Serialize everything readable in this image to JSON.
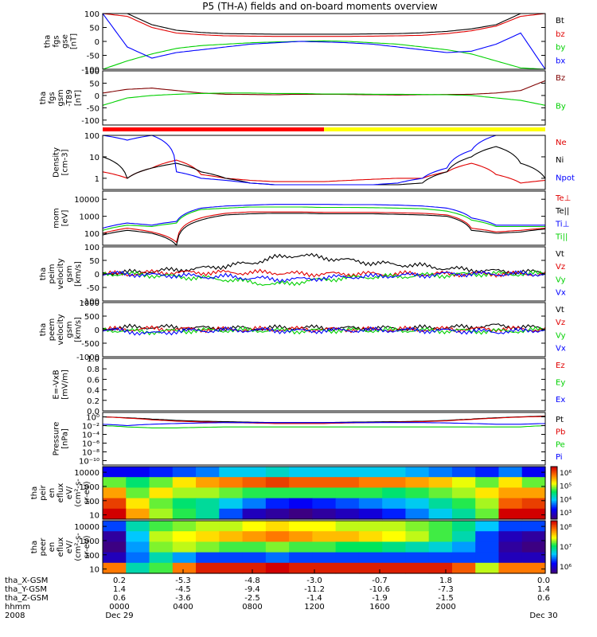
{
  "title": "P5 (TH-A) fields and on-board moments overview",
  "chart_data": [
    {
      "type": "line",
      "panel": "fgs_gse",
      "ylabel": [
        "tha",
        "fgs",
        "gse",
        "[nT]"
      ],
      "yticks": [
        "100",
        "50",
        "0",
        "-50",
        "-100"
      ],
      "ylim": [
        -100,
        100
      ],
      "scale": "linear",
      "series": [
        {
          "name": "Bt",
          "color": "#000000",
          "values": [
            100,
            100,
            60,
            40,
            32,
            28,
            27,
            26,
            26,
            26,
            26,
            27,
            28,
            31,
            36,
            45,
            60,
            100,
            100
          ]
        },
        {
          "name": "bz",
          "color": "#e00000",
          "values": [
            100,
            90,
            50,
            30,
            24,
            20,
            19,
            18,
            18,
            18,
            18,
            19,
            20,
            22,
            28,
            38,
            55,
            90,
            100
          ]
        },
        {
          "name": "by",
          "color": "#00d000",
          "values": [
            -100,
            -70,
            -45,
            -25,
            -15,
            -10,
            -5,
            -2,
            0,
            2,
            0,
            -5,
            -10,
            -20,
            -30,
            -45,
            -70,
            -95,
            -100
          ]
        },
        {
          "name": "bx",
          "color": "#0000ff",
          "values": [
            100,
            -20,
            -60,
            -40,
            -30,
            -20,
            -10,
            -5,
            0,
            -2,
            -5,
            -10,
            -20,
            -30,
            -40,
            -35,
            -10,
            30,
            -100
          ]
        }
      ]
    },
    {
      "type": "line",
      "panel": "fgs_gsm_t89",
      "ylabel": [
        "tha",
        "fgs",
        "gsm",
        "-T89",
        "[nT]"
      ],
      "yticks": [
        "100",
        "50",
        "0",
        "-50",
        "-100"
      ],
      "ylim": [
        -120,
        100
      ],
      "scale": "linear",
      "series": [
        {
          "name": "Bz",
          "color": "#800000",
          "values": [
            10,
            25,
            30,
            20,
            10,
            5,
            4,
            3,
            5,
            5,
            4,
            3,
            2,
            3,
            4,
            5,
            10,
            20,
            60
          ]
        },
        {
          "name": "By",
          "color": "#00d000",
          "values": [
            -40,
            -10,
            0,
            5,
            8,
            10,
            10,
            8,
            8,
            6,
            6,
            5,
            5,
            4,
            3,
            0,
            -10,
            -20,
            -40
          ]
        }
      ]
    },
    {
      "type": "line",
      "panel": "density",
      "ylabel": [
        "Density",
        "[cm-3]"
      ],
      "yticks": [
        "100",
        "10",
        "1"
      ],
      "ylim": [
        0.3,
        100
      ],
      "scale": "log",
      "series": [
        {
          "name": "Ne",
          "color": "#e00000",
          "values": [
            2,
            1,
            3,
            7,
            1.5,
            1,
            0.8,
            0.7,
            0.7,
            0.7,
            0.8,
            0.9,
            1,
            1,
            2,
            5,
            1.5,
            0.6,
            0.8
          ]
        },
        {
          "name": "Ni",
          "color": "#000000",
          "values": [
            10,
            1,
            3,
            5,
            2,
            1,
            0.6,
            0.5,
            0.5,
            0.5,
            0.5,
            0.5,
            0.5,
            0.6,
            2,
            10,
            30,
            5,
            1
          ]
        },
        {
          "name": "Npot",
          "color": "#0000ff",
          "values": [
            100,
            60,
            100,
            2,
            1,
            0.8,
            0.6,
            0.5,
            0.5,
            0.5,
            0.5,
            0.5,
            0.6,
            1,
            3,
            20,
            100,
            100,
            100
          ]
        }
      ]
    },
    {
      "type": "line",
      "panel": "mom",
      "ylabel": [
        "mom",
        "[eV]"
      ],
      "yticks": [
        "10000",
        "1000",
        "100"
      ],
      "ylim": [
        20,
        30000
      ],
      "scale": "log",
      "series": [
        {
          "name": "Te⊥",
          "color": "#e00000",
          "values": [
            100,
            200,
            120,
            30,
            800,
            1500,
            1800,
            1800,
            1800,
            1700,
            1700,
            1700,
            1600,
            1500,
            1200,
            200,
            120,
            150,
            200
          ]
        },
        {
          "name": "Te||",
          "color": "#000000",
          "values": [
            80,
            150,
            100,
            20,
            600,
            1200,
            1400,
            1500,
            1500,
            1400,
            1400,
            1400,
            1300,
            1200,
            1000,
            150,
            100,
            120,
            180
          ]
        },
        {
          "name": "Ti⊥",
          "color": "#0000ff",
          "values": [
            200,
            400,
            300,
            500,
            3000,
            4000,
            4500,
            5000,
            5000,
            5000,
            4800,
            4800,
            4500,
            4000,
            3000,
            800,
            300,
            300,
            300
          ]
        },
        {
          "name": "Ti||",
          "color": "#00d000",
          "values": [
            150,
            300,
            250,
            400,
            2500,
            3000,
            3500,
            3500,
            3500,
            3300,
            3300,
            3200,
            3000,
            2800,
            2000,
            600,
            250,
            250,
            250
          ]
        }
      ]
    },
    {
      "type": "line",
      "panel": "peim_velocity",
      "ylabel": [
        "tha",
        "peim",
        "velocity",
        "gsm",
        "[km/s]"
      ],
      "yticks": [
        "100",
        "50",
        "0",
        "-50",
        "-100"
      ],
      "ylim": [
        -100,
        100
      ],
      "scale": "linear",
      "series": [
        {
          "name": "Vt",
          "color": "#000000",
          "values": [
            5,
            5,
            10,
            15,
            20,
            30,
            40,
            60,
            70,
            60,
            50,
            40,
            35,
            30,
            20,
            15,
            10,
            8,
            5
          ]
        },
        {
          "name": "Vz",
          "color": "#e00000",
          "values": [
            0,
            0,
            5,
            5,
            5,
            5,
            5,
            5,
            0,
            0,
            0,
            0,
            0,
            0,
            0,
            0,
            0,
            0,
            0
          ]
        },
        {
          "name": "Vy",
          "color": "#00d000",
          "values": [
            0,
            0,
            -5,
            -10,
            -15,
            -20,
            -30,
            -40,
            -30,
            -20,
            -15,
            -10,
            -10,
            -5,
            -5,
            0,
            0,
            0,
            0
          ]
        },
        {
          "name": "Vx",
          "color": "#0000ff",
          "values": [
            0,
            0,
            -5,
            -5,
            -10,
            -10,
            -15,
            -20,
            -20,
            -15,
            -10,
            -10,
            -5,
            -5,
            0,
            0,
            0,
            0,
            0
          ]
        }
      ]
    },
    {
      "type": "line",
      "panel": "peem_velocity",
      "ylabel": [
        "tha",
        "peem",
        "velocity",
        "gsm",
        "[km/s]"
      ],
      "yticks": [
        "1000",
        "500",
        "0",
        "-500",
        "-1000"
      ],
      "ylim": [
        -1000,
        1000
      ],
      "scale": "linear",
      "series": [
        {
          "name": "Vt",
          "color": "#000000",
          "values": [
            50,
            80,
            100,
            80,
            60,
            50,
            50,
            60,
            80,
            60,
            50,
            50,
            50,
            60,
            80,
            100,
            150,
            100,
            50
          ]
        },
        {
          "name": "Vz",
          "color": "#e00000",
          "values": [
            0,
            20,
            30,
            20,
            10,
            10,
            10,
            10,
            20,
            10,
            10,
            10,
            10,
            10,
            20,
            20,
            30,
            20,
            0
          ]
        },
        {
          "name": "Vy",
          "color": "#00d000",
          "values": [
            0,
            -50,
            -80,
            -50,
            -30,
            -20,
            -20,
            -30,
            -50,
            -30,
            -20,
            -20,
            -20,
            -30,
            -40,
            -50,
            -60,
            -40,
            0
          ]
        },
        {
          "name": "Vx",
          "color": "#0000ff",
          "values": [
            0,
            -60,
            -150,
            -60,
            -30,
            -20,
            -20,
            -30,
            -50,
            -30,
            -20,
            -20,
            -20,
            -30,
            -40,
            -60,
            -80,
            -50,
            0
          ]
        }
      ]
    },
    {
      "type": "line",
      "panel": "e_field",
      "ylabel": [
        "E=-VxB",
        "[mV/m]"
      ],
      "yticks": [
        "1.0",
        "0.8",
        "0.6",
        "0.4",
        "0.2",
        "0.0"
      ],
      "ylim": [
        0,
        1
      ],
      "scale": "linear",
      "series": [
        {
          "name": "Ez",
          "color": "#e00000",
          "values": []
        },
        {
          "name": "Ey",
          "color": "#00d000",
          "values": []
        },
        {
          "name": "Ex",
          "color": "#0000ff",
          "values": []
        }
      ]
    },
    {
      "type": "line",
      "panel": "pressure",
      "ylabel": [
        "Pressure",
        "[nPa]"
      ],
      "yticks": [
        "10⁰",
        "10⁻²",
        "10⁻⁴",
        "10⁻⁶",
        "10⁻⁸",
        "10⁻¹⁰"
      ],
      "ylim": [
        1e-11,
        10
      ],
      "scale": "log",
      "series": [
        {
          "name": "Pt",
          "color": "#000000",
          "values": [
            1,
            0.6,
            0.3,
            0.15,
            0.1,
            0.08,
            0.06,
            0.05,
            0.05,
            0.05,
            0.06,
            0.07,
            0.08,
            0.1,
            0.15,
            0.3,
            0.6,
            1,
            1.5
          ]
        },
        {
          "name": "Pb",
          "color": "#e00000",
          "values": [
            1,
            0.5,
            0.2,
            0.1,
            0.07,
            0.05,
            0.04,
            0.03,
            0.03,
            0.03,
            0.04,
            0.05,
            0.06,
            0.08,
            0.12,
            0.25,
            0.5,
            0.9,
            1.2
          ]
        },
        {
          "name": "Pe",
          "color": "#00d000",
          "values": [
            0.01,
            0.005,
            0.003,
            0.003,
            0.004,
            0.005,
            0.005,
            0.005,
            0.005,
            0.005,
            0.005,
            0.005,
            0.005,
            0.005,
            0.005,
            0.005,
            0.005,
            0.005,
            0.01
          ]
        },
        {
          "name": "Pi",
          "color": "#0000ff",
          "values": [
            0.02,
            0.01,
            0.02,
            0.03,
            0.04,
            0.05,
            0.05,
            0.05,
            0.05,
            0.05,
            0.05,
            0.05,
            0.05,
            0.05,
            0.04,
            0.03,
            0.02,
            0.02,
            0.03
          ]
        }
      ]
    },
    {
      "type": "heatmap",
      "panel": "peir_en_eflux",
      "ylabel": [
        "tha",
        "peir",
        "en",
        "eflux",
        "eV/",
        "(cm²-s-",
        "sr-eV)"
      ],
      "yticks": [
        "10000",
        "1000",
        "100",
        "10"
      ],
      "ylim": [
        5,
        25000
      ],
      "scale": "log",
      "colorbar_ticks": [
        "10⁶",
        "10⁵",
        "10⁴",
        "10³"
      ],
      "z_log10": [
        [
          3.5,
          3.5,
          3.6,
          3.7,
          3.8,
          4.0,
          4.0,
          4.1,
          4.0,
          4.0,
          4.0,
          4.0,
          4.0,
          3.9,
          3.8,
          3.7,
          3.6,
          3.8,
          3.5
        ],
        [
          4.5,
          4.3,
          4.5,
          4.8,
          5.0,
          5.1,
          5.2,
          5.3,
          5.2,
          5.2,
          5.2,
          5.1,
          5.1,
          5.0,
          4.9,
          4.7,
          4.5,
          4.8,
          4.5
        ],
        [
          5.0,
          4.5,
          4.8,
          4.6,
          4.6,
          4.5,
          4.4,
          4.4,
          4.4,
          4.4,
          4.4,
          4.4,
          4.3,
          4.4,
          4.5,
          4.6,
          4.8,
          5.0,
          5.0
        ],
        [
          5.3,
          4.8,
          4.5,
          4.3,
          4.2,
          4.0,
          3.8,
          3.6,
          3.5,
          3.6,
          3.7,
          3.8,
          3.9,
          4.0,
          4.2,
          4.4,
          4.6,
          5.2,
          5.3
        ],
        [
          5.5,
          5.0,
          4.6,
          4.4,
          4.2,
          3.7,
          3.3,
          3.2,
          3.1,
          3.2,
          3.3,
          3.4,
          3.6,
          3.8,
          4.0,
          4.2,
          4.5,
          5.5,
          5.5
        ]
      ]
    },
    {
      "type": "heatmap",
      "panel": "peer_en_eflux",
      "ylabel": [
        "tha",
        "peer",
        "en",
        "eflux",
        "eV/",
        "(cm²-s-",
        "sr-eV)"
      ],
      "yticks": [
        "10000",
        "1000",
        "100",
        "10"
      ],
      "ylim": [
        5,
        25000
      ],
      "scale": "log",
      "colorbar_ticks": [
        "10⁸",
        "10⁷",
        "10⁶"
      ],
      "z_log10": [
        [
          6.0,
          6.5,
          6.8,
          6.9,
          7.0,
          7.0,
          7.1,
          7.2,
          7.1,
          7.1,
          7.0,
          7.0,
          7.0,
          6.9,
          6.8,
          6.6,
          6.3,
          6.0,
          6.0
        ],
        [
          5.5,
          6.3,
          7.0,
          7.1,
          7.2,
          7.3,
          7.4,
          7.5,
          7.4,
          7.3,
          7.3,
          7.2,
          7.1,
          7.0,
          6.8,
          6.5,
          6.0,
          5.6,
          5.5
        ],
        [
          5.4,
          6.2,
          6.9,
          7.0,
          6.9,
          6.8,
          6.8,
          6.9,
          6.8,
          6.8,
          6.7,
          6.7,
          6.6,
          6.5,
          6.4,
          6.2,
          6.0,
          5.5,
          5.4
        ],
        [
          5.6,
          6.1,
          6.5,
          6.2,
          6.0,
          6.0,
          6.0,
          6.1,
          6.0,
          6.0,
          6.0,
          6.0,
          6.0,
          6.0,
          6.0,
          6.0,
          6.0,
          5.6,
          5.6
        ],
        [
          7.5,
          6.5,
          6.8,
          7.5,
          7.8,
          7.8,
          7.8,
          7.9,
          7.8,
          7.8,
          7.8,
          7.8,
          7.8,
          7.8,
          7.8,
          7.6,
          7.0,
          7.5,
          7.5
        ]
      ]
    }
  ],
  "status_bar": {
    "red_until_fraction": 0.5,
    "red_color": "#ff0000",
    "yellow_color": "#ffff00"
  },
  "footer": {
    "rows": [
      {
        "label": "tha_X-GSM",
        "values": [
          "0.2",
          "-5.3",
          "-4.8",
          "-3.0",
          "-0.7",
          "1.8",
          "0.0"
        ]
      },
      {
        "label": "tha_Y-GSM",
        "values": [
          "1.4",
          "-4.5",
          "-9.4",
          "-11.2",
          "-10.6",
          "-7.3",
          "1.4"
        ]
      },
      {
        "label": "tha_Z-GSM",
        "values": [
          "0.6",
          "-3.6",
          "-2.5",
          "-1.4",
          "-1.9",
          "-1.5",
          "0.6"
        ]
      },
      {
        "label": "hhmm",
        "values": [
          "0000",
          "0400",
          "0800",
          "1200",
          "1600",
          "2000",
          ""
        ]
      },
      {
        "label": "2008",
        "values": [
          "Dec 29",
          "",
          "",
          "",
          "",
          "",
          "Dec 30"
        ]
      }
    ]
  }
}
